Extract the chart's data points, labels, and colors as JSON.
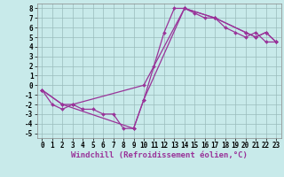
{
  "xlabel": "Windchill (Refroidissement éolien,°C)",
  "xlim": [
    -0.5,
    23.5
  ],
  "ylim": [
    -5.5,
    8.5
  ],
  "xticks": [
    0,
    1,
    2,
    3,
    4,
    5,
    6,
    7,
    8,
    9,
    10,
    11,
    12,
    13,
    14,
    15,
    16,
    17,
    18,
    19,
    20,
    21,
    22,
    23
  ],
  "yticks": [
    -5,
    -4,
    -3,
    -2,
    -1,
    0,
    1,
    2,
    3,
    4,
    5,
    6,
    7,
    8
  ],
  "bg_color": "#c8eaea",
  "line_color": "#993399",
  "grid_color": "#99bbbb",
  "line1_x": [
    0,
    1,
    2,
    3,
    4,
    5,
    6,
    7,
    8,
    9,
    10,
    11,
    12,
    13,
    14,
    15,
    16,
    17,
    18,
    19,
    20,
    21,
    22,
    23
  ],
  "line1_y": [
    -0.5,
    -2,
    -2.5,
    -2,
    -2.5,
    -2.5,
    -3,
    -3,
    -4.5,
    -4.5,
    -1.5,
    2,
    5.5,
    8,
    8,
    7.5,
    7,
    7,
    6,
    5.5,
    5,
    5.5,
    4.5,
    4.5
  ],
  "line2_x": [
    0,
    2,
    3,
    10,
    14,
    17,
    20,
    21,
    22,
    23
  ],
  "line2_y": [
    -0.5,
    -2,
    -2,
    0,
    8,
    7,
    5.5,
    5,
    5.5,
    4.5
  ],
  "line3_x": [
    0,
    2,
    9,
    10,
    14,
    17,
    20,
    21,
    22,
    23
  ],
  "line3_y": [
    -0.5,
    -2,
    -4.5,
    -1.5,
    8,
    7,
    5.5,
    5,
    5.5,
    4.5
  ],
  "font_size": 6.5,
  "tick_font_size": 5.5
}
